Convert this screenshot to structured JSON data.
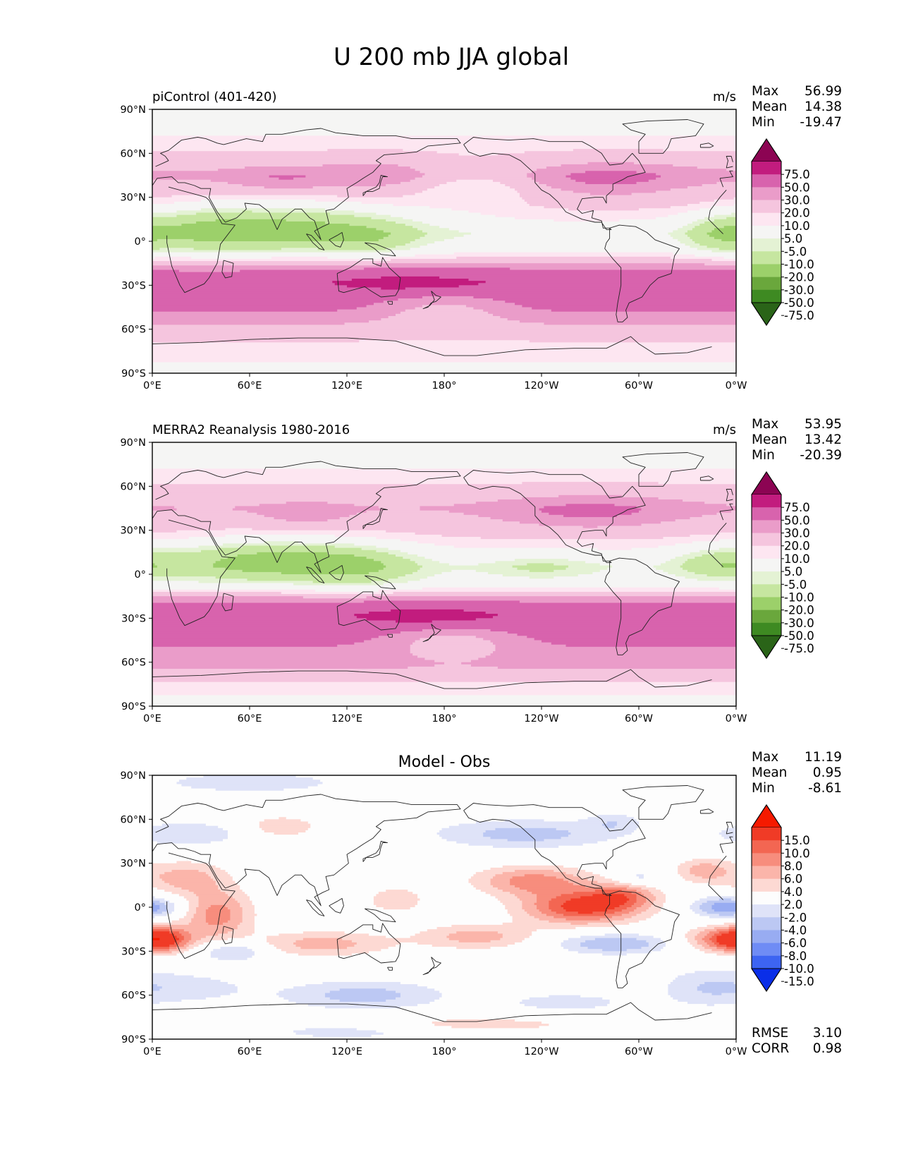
{
  "title": "U 200 mb JJA global",
  "palettes": {
    "u200": [
      "#2a6418",
      "#3e8a22",
      "#6aa73c",
      "#9cd06a",
      "#c6e6a0",
      "#e4f2d4",
      "#f5f5f4",
      "#fde6f1",
      "#f5c5de",
      "#ea9cc9",
      "#d863ad",
      "#c21c7e",
      "#8c0453"
    ],
    "diff": [
      "#0a2ee8",
      "#3d64f2",
      "#6f8cf5",
      "#98acf2",
      "#bcc8f3",
      "#dfe3f8",
      "#fdfdfd",
      "#fdd9d3",
      "#fbb5aa",
      "#f78d7d",
      "#f36652",
      "#f03b26",
      "#f51a00"
    ]
  },
  "chart_data": [
    {
      "type": "heatmap",
      "panel_title": "piControl (401-420)",
      "units": "m/s",
      "x_ticks": [
        "0°E",
        "60°E",
        "120°E",
        "180°",
        "120°W",
        "60°W",
        "0°W"
      ],
      "y_ticks": [
        "90°N",
        "60°N",
        "30°N",
        "0°",
        "30°S",
        "60°S",
        "90°S"
      ],
      "xlim": [
        0,
        360
      ],
      "ylim": [
        -90,
        90
      ],
      "stats": [
        {
          "label": "Max",
          "value": "56.99"
        },
        {
          "label": "Mean",
          "value": "14.38"
        },
        {
          "label": "Min",
          "value": "-19.47"
        }
      ],
      "colorbar_ticks": [
        "75.0",
        "50.0",
        "30.0",
        "20.0",
        "10.0",
        "5.0",
        "-5.0",
        "-10.0",
        "-20.0",
        "-30.0",
        "-50.0",
        "-75.0"
      ],
      "colorbar_palette": "u200",
      "field": {
        "zonal_bands": [
          [
            -90,
            4
          ],
          [
            -75,
            6
          ],
          [
            -65,
            12
          ],
          [
            -55,
            22
          ],
          [
            -45,
            34
          ],
          [
            -35,
            40
          ],
          [
            -28,
            42
          ],
          [
            -18,
            28
          ],
          [
            -12,
            12
          ],
          [
            -5,
            2
          ],
          [
            5,
            -2
          ],
          [
            15,
            6
          ],
          [
            25,
            12
          ],
          [
            35,
            15
          ],
          [
            45,
            22
          ],
          [
            55,
            14
          ],
          [
            65,
            8
          ],
          [
            75,
            4
          ],
          [
            90,
            2
          ]
        ],
        "blobs": [
          {
            "lon": 85,
            "lat": 10,
            "w": 55,
            "h": 12,
            "amp": -26
          },
          {
            "lon": 30,
            "lat": 8,
            "w": 25,
            "h": 12,
            "amp": -10
          },
          {
            "lon": 135,
            "lat": 0,
            "w": 18,
            "h": 8,
            "amp": -8
          },
          {
            "lon": 350,
            "lat": 5,
            "w": 15,
            "h": 10,
            "amp": -14
          },
          {
            "lon": 160,
            "lat": -28,
            "w": 40,
            "h": 5,
            "amp": 18
          },
          {
            "lon": 180,
            "lat": -45,
            "w": 30,
            "h": 8,
            "amp": -16
          },
          {
            "lon": 200,
            "lat": 40,
            "w": 30,
            "h": 10,
            "amp": -12
          },
          {
            "lon": 280,
            "lat": 42,
            "w": 35,
            "h": 8,
            "amp": 14
          },
          {
            "lon": 80,
            "lat": 42,
            "w": 22,
            "h": 6,
            "amp": 10
          },
          {
            "lon": 140,
            "lat": 45,
            "w": 25,
            "h": 8,
            "amp": 8
          }
        ]
      }
    },
    {
      "type": "heatmap",
      "panel_title": "MERRA2 Reanalysis 1980-2016",
      "units": "m/s",
      "x_ticks": [
        "0°E",
        "60°E",
        "120°E",
        "180°",
        "120°W",
        "60°W",
        "0°W"
      ],
      "y_ticks": [
        "90°N",
        "60°N",
        "30°N",
        "0°",
        "30°S",
        "60°S",
        "90°S"
      ],
      "xlim": [
        0,
        360
      ],
      "ylim": [
        -90,
        90
      ],
      "stats": [
        {
          "label": "Max",
          "value": "53.95"
        },
        {
          "label": "Mean",
          "value": "13.42"
        },
        {
          "label": "Min",
          "value": "-20.39"
        }
      ],
      "colorbar_ticks": [
        "75.0",
        "50.0",
        "30.0",
        "20.0",
        "10.0",
        "5.0",
        "-5.0",
        "-10.0",
        "-20.0",
        "-30.0",
        "-50.0",
        "-75.0"
      ],
      "colorbar_palette": "u200",
      "field": {
        "zonal_bands": [
          [
            -90,
            2
          ],
          [
            -75,
            8
          ],
          [
            -65,
            20
          ],
          [
            -55,
            26
          ],
          [
            -45,
            34
          ],
          [
            -35,
            40
          ],
          [
            -28,
            42
          ],
          [
            -18,
            28
          ],
          [
            -12,
            10
          ],
          [
            -5,
            0
          ],
          [
            5,
            -3
          ],
          [
            15,
            4
          ],
          [
            25,
            10
          ],
          [
            35,
            14
          ],
          [
            45,
            20
          ],
          [
            55,
            14
          ],
          [
            65,
            8
          ],
          [
            75,
            4
          ],
          [
            90,
            2
          ]
        ],
        "blobs": [
          {
            "lon": 75,
            "lat": 10,
            "w": 45,
            "h": 10,
            "amp": -26
          },
          {
            "lon": 130,
            "lat": 5,
            "w": 25,
            "h": 10,
            "amp": -12
          },
          {
            "lon": 350,
            "lat": 8,
            "w": 20,
            "h": 8,
            "amp": -14
          },
          {
            "lon": 240,
            "lat": 5,
            "w": 25,
            "h": 6,
            "amp": -9
          },
          {
            "lon": 170,
            "lat": -28,
            "w": 35,
            "h": 5,
            "amp": 20
          },
          {
            "lon": 185,
            "lat": -45,
            "w": 30,
            "h": 8,
            "amp": -18
          },
          {
            "lon": 270,
            "lat": 42,
            "w": 40,
            "h": 8,
            "amp": 15
          },
          {
            "lon": 95,
            "lat": 40,
            "w": 20,
            "h": 6,
            "amp": 8
          }
        ]
      }
    },
    {
      "type": "heatmap",
      "panel_title": "Model - Obs",
      "units": "",
      "x_ticks": [
        "0°E",
        "60°E",
        "120°E",
        "180°",
        "120°W",
        "60°W",
        "0°W"
      ],
      "y_ticks": [
        "90°N",
        "60°N",
        "30°N",
        "0°",
        "30°S",
        "60°S",
        "90°S"
      ],
      "xlim": [
        0,
        360
      ],
      "ylim": [
        -90,
        90
      ],
      "stats": [
        {
          "label": "Max",
          "value": "11.19"
        },
        {
          "label": "Mean",
          "value": "0.95"
        },
        {
          "label": "Min",
          "value": "-8.61"
        }
      ],
      "colorbar_ticks": [
        "15.0",
        "10.0",
        "8.0",
        "6.0",
        "4.0",
        "2.0",
        "-2.0",
        "-4.0",
        "-6.0",
        "-8.0",
        "-10.0",
        "-15.0"
      ],
      "colorbar_palette": "diff",
      "bottom_stats": [
        {
          "label": "RMSE",
          "value": "3.10"
        },
        {
          "label": "CORR",
          "value": "0.98"
        }
      ],
      "field": {
        "zonal_bands": [
          [
            -90,
            0
          ],
          [
            90,
            0
          ]
        ],
        "blobs": [
          {
            "lon": 265,
            "lat": 0,
            "w": 25,
            "h": 8,
            "amp": 11
          },
          {
            "lon": 235,
            "lat": 18,
            "w": 25,
            "h": 7,
            "amp": 7
          },
          {
            "lon": 290,
            "lat": 8,
            "w": 15,
            "h": 6,
            "amp": 6
          },
          {
            "lon": 355,
            "lat": -22,
            "w": 18,
            "h": 6,
            "amp": 8
          },
          {
            "lon": 5,
            "lat": -22,
            "w": 12,
            "h": 6,
            "amp": 8
          },
          {
            "lon": 40,
            "lat": -5,
            "w": 15,
            "h": 12,
            "amp": 7
          },
          {
            "lon": 20,
            "lat": 20,
            "w": 18,
            "h": 8,
            "amp": 5
          },
          {
            "lon": 340,
            "lat": 25,
            "w": 12,
            "h": 6,
            "amp": 5
          },
          {
            "lon": 105,
            "lat": -25,
            "w": 30,
            "h": 6,
            "amp": 5
          },
          {
            "lon": 200,
            "lat": -20,
            "w": 25,
            "h": 6,
            "amp": 5
          },
          {
            "lon": 80,
            "lat": 55,
            "w": 15,
            "h": 5,
            "amp": 4
          },
          {
            "lon": 150,
            "lat": 5,
            "w": 12,
            "h": 6,
            "amp": 4
          },
          {
            "lon": 355,
            "lat": 0,
            "w": 15,
            "h": 5,
            "amp": -8
          },
          {
            "lon": 285,
            "lat": -25,
            "w": 25,
            "h": 5,
            "amp": -6
          },
          {
            "lon": 230,
            "lat": 50,
            "w": 40,
            "h": 7,
            "amp": -5
          },
          {
            "lon": 130,
            "lat": -60,
            "w": 35,
            "h": 7,
            "amp": -5
          },
          {
            "lon": 50,
            "lat": -30,
            "w": 15,
            "h": 5,
            "amp": -5
          },
          {
            "lon": 20,
            "lat": 50,
            "w": 25,
            "h": 6,
            "amp": -4
          },
          {
            "lon": 60,
            "lat": 85,
            "w": 50,
            "h": 6,
            "amp": -3
          },
          {
            "lon": 300,
            "lat": 20,
            "w": 10,
            "h": 4,
            "amp": -3
          },
          {
            "lon": 20,
            "lat": -55,
            "w": 30,
            "h": 8,
            "amp": -3
          },
          {
            "lon": 340,
            "lat": -55,
            "w": 20,
            "h": 10,
            "amp": -3
          },
          {
            "lon": 120,
            "lat": -85,
            "w": 40,
            "h": 4,
            "amp": -3
          },
          {
            "lon": 285,
            "lat": 58,
            "w": 12,
            "h": 5,
            "amp": -3
          },
          {
            "lon": 255,
            "lat": -65,
            "w": 30,
            "h": 5,
            "amp": -3
          },
          {
            "lon": 200,
            "lat": -80,
            "w": 50,
            "h": 4,
            "amp": 3
          }
        ]
      }
    }
  ]
}
